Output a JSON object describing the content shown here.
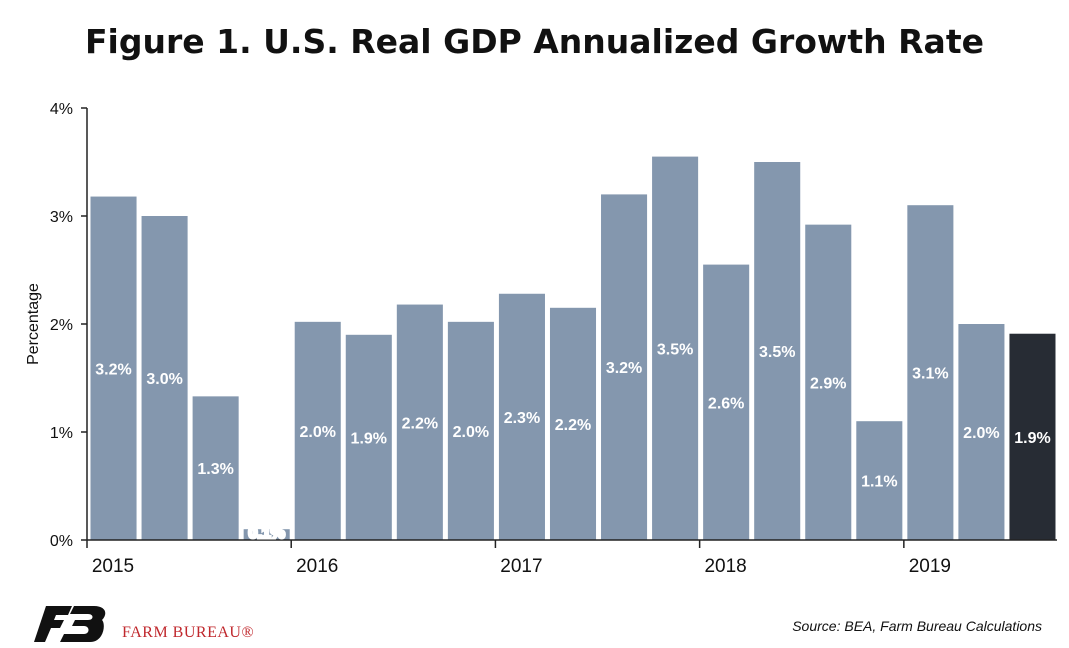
{
  "page": {
    "title": "Figure 1. U.S. Real GDP Annualized Growth Rate",
    "source": "Source: BEA, Farm Bureau Calculations",
    "brand": "FARM BUREAU®"
  },
  "colors": {
    "bar": "#8497ae",
    "highlight": "#272c34",
    "brand_red": "#c0282d",
    "logo": "#111111"
  },
  "icons": {
    "logo": "farm-bureau-logo"
  },
  "chart_data": {
    "type": "bar",
    "title": "Figure 1. U.S. Real GDP Annualized Growth Rate",
    "ylabel": "Percentage",
    "xlabel": "",
    "ylim": [
      0,
      4
    ],
    "yticks": [
      "0%",
      "1%",
      "2%",
      "3%",
      "4%"
    ],
    "year_labels": [
      "2015",
      "2016",
      "2017",
      "2018",
      "2019"
    ],
    "categories": [
      "2015 Q1",
      "2015 Q2",
      "2015 Q3",
      "2015 Q4",
      "2016 Q1",
      "2016 Q2",
      "2016 Q3",
      "2016 Q4",
      "2017 Q1",
      "2017 Q2",
      "2017 Q3",
      "2017 Q4",
      "2018 Q1",
      "2018 Q2",
      "2018 Q3",
      "2018 Q4",
      "2019 Q1",
      "2019 Q2",
      "2019 Q3"
    ],
    "values": [
      3.18,
      3.0,
      1.33,
      0.1,
      2.02,
      1.9,
      2.18,
      2.02,
      2.28,
      2.15,
      3.2,
      3.55,
      2.55,
      3.5,
      2.92,
      1.1,
      3.1,
      2.0,
      1.91
    ],
    "labels": [
      "3.2%",
      "3.0%",
      "1.3%",
      "0.1%",
      "2.0%",
      "1.9%",
      "2.2%",
      "2.0%",
      "2.3%",
      "2.2%",
      "3.2%",
      "3.5%",
      "2.6%",
      "3.5%",
      "2.9%",
      "1.1%",
      "3.1%",
      "2.0%",
      "1.9%"
    ],
    "highlight_index": 18,
    "grid": false,
    "legend": "none"
  }
}
